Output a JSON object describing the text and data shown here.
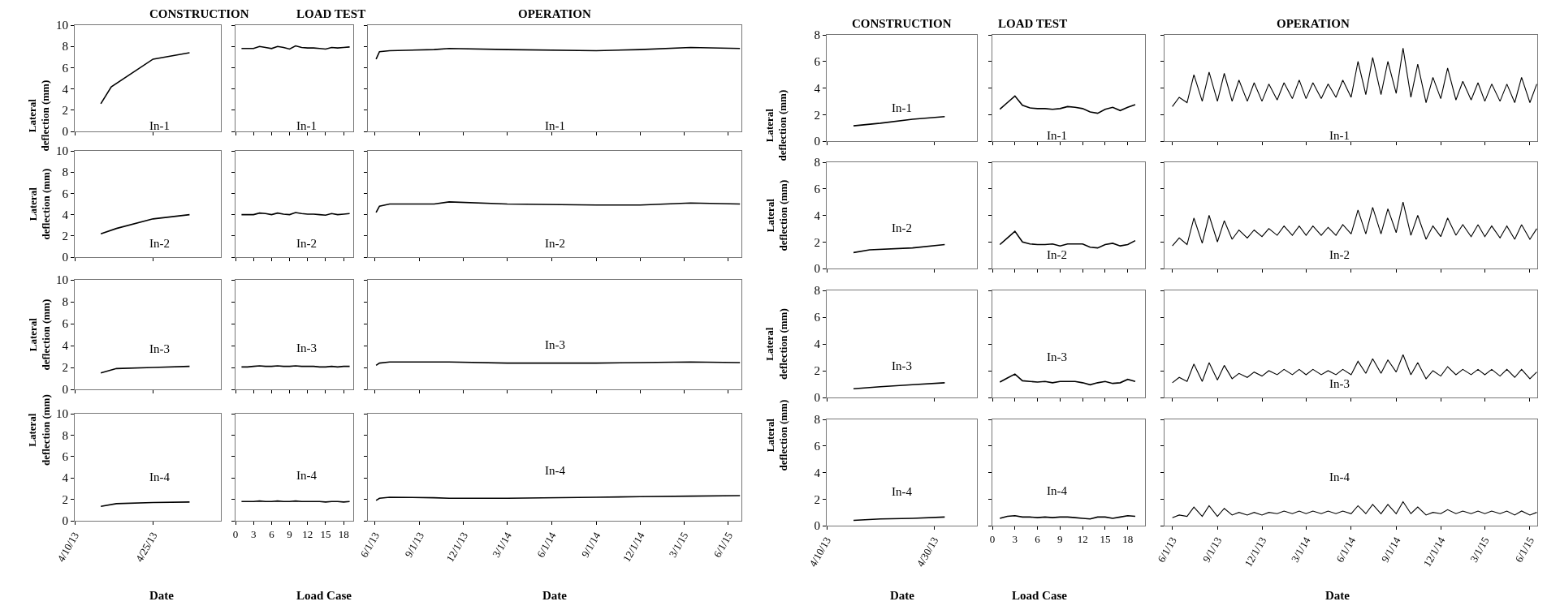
{
  "chart_data": [
    {
      "type": "line",
      "title": "CONSTRUCTION",
      "ylabel": "Lateral\ndeflection (mm)",
      "x": [
        "--04-15",
        "--04-17",
        "--04-25",
        "--05-02"
      ],
      "series": [
        {
          "name": "In-1",
          "color": "#000000",
          "values": [
            2.6,
            4.2,
            6.8,
            7.4
          ]
        }
      ],
      "xlim": [
        "--04-10",
        "--05-08"
      ],
      "xticks": [
        {
          "value": "--04-10",
          "label": "4/10/13"
        },
        {
          "value": "--04-25",
          "label": "4/25/13"
        }
      ],
      "ylim": [
        0,
        10
      ],
      "yticks": [
        0,
        2,
        4,
        6,
        8,
        10
      ],
      "tick_labels": "y"
    },
    {
      "type": "line",
      "title": "LOAD TEST",
      "x": [
        1,
        2,
        3,
        4,
        5,
        6,
        7,
        8,
        9,
        10,
        11,
        12,
        13,
        14,
        15,
        16,
        17,
        18,
        19
      ],
      "series": [
        {
          "name": "In-1",
          "color": "#000000",
          "values": [
            7.8,
            7.8,
            7.8,
            8.0,
            7.9,
            7.8,
            8.0,
            7.9,
            7.75,
            8.05,
            7.9,
            7.85,
            7.85,
            7.8,
            7.75,
            7.9,
            7.85,
            7.9,
            7.95
          ]
        }
      ],
      "xlim": [
        0,
        19.6
      ],
      "xticks": [
        0,
        3,
        6,
        9,
        12,
        15,
        18
      ],
      "ylim": [
        0,
        10
      ],
      "yticks": [
        0,
        2,
        4,
        6,
        8,
        10
      ],
      "tick_labels": false
    },
    {
      "type": "line",
      "title": "OPERATION",
      "x": [
        "2013-06-03",
        "2013-06-10",
        "2013-07-01",
        "2013-10-01",
        "2013-11-01",
        "2014-03-01",
        "2014-09-01",
        "2014-12-01",
        "2015-03-15",
        "2015-06-25"
      ],
      "series": [
        {
          "name": "In-1",
          "color": "#000000",
          "values": [
            6.8,
            7.5,
            7.6,
            7.7,
            7.8,
            7.7,
            7.6,
            7.7,
            7.9,
            7.8
          ]
        }
      ],
      "xlim": [
        "2013-05-17",
        "2015-06-28"
      ],
      "xticks": [
        {
          "value": "2013-06-01",
          "label": "6/1/13"
        },
        {
          "value": "2013-09-01",
          "label": "9/1/13"
        },
        {
          "value": "2013-12-01",
          "label": "12/1/13"
        },
        {
          "value": "2014-03-01",
          "label": "3/1/14"
        },
        {
          "value": "2014-06-01",
          "label": "6/1/14"
        },
        {
          "value": "2014-09-01",
          "label": "9/1/14"
        },
        {
          "value": "2014-12-01",
          "label": "12/1/14"
        },
        {
          "value": "2015-03-01",
          "label": "3/1/15"
        },
        {
          "value": "2015-06-01",
          "label": "6/1/15"
        }
      ],
      "ylim": [
        0,
        10
      ],
      "yticks": [
        0,
        2,
        4,
        6,
        8,
        10
      ],
      "tick_labels": false
    },
    {
      "type": "line",
      "ylabel": "Lateral\ndeflection (mm)",
      "x": [
        "--04-15",
        "--04-18",
        "--04-25",
        "--05-02"
      ],
      "series": [
        {
          "name": "In-2",
          "color": "#000000",
          "values": [
            2.2,
            2.7,
            3.6,
            4.0
          ]
        }
      ],
      "xlim": [
        "--04-10",
        "--05-08"
      ],
      "xticks": [
        {
          "value": "--04-10",
          "label": "4/10/13"
        },
        {
          "value": "--04-25",
          "label": "4/25/13"
        }
      ],
      "ylim": [
        0,
        10
      ],
      "yticks": [
        0,
        2,
        4,
        6,
        8,
        10
      ],
      "tick_labels": "y"
    },
    {
      "type": "line",
      "x": [
        1,
        2,
        3,
        4,
        5,
        6,
        7,
        8,
        9,
        10,
        11,
        12,
        13,
        14,
        15,
        16,
        17,
        18,
        19
      ],
      "series": [
        {
          "name": "In-2",
          "color": "#000000",
          "values": [
            4.0,
            4.0,
            4.0,
            4.15,
            4.1,
            4.0,
            4.15,
            4.05,
            4.0,
            4.2,
            4.1,
            4.05,
            4.05,
            4.0,
            3.95,
            4.1,
            4.0,
            4.05,
            4.1
          ]
        }
      ],
      "xlim": [
        0,
        19.6
      ],
      "xticks": [
        0,
        3,
        6,
        9,
        12,
        15,
        18
      ],
      "ylim": [
        0,
        10
      ],
      "yticks": [
        0,
        2,
        4,
        6,
        8,
        10
      ],
      "tick_labels": false
    },
    {
      "type": "line",
      "x": [
        "2013-06-03",
        "2013-06-10",
        "2013-07-01",
        "2013-10-01",
        "2013-11-01",
        "2014-03-01",
        "2014-09-01",
        "2014-12-01",
        "2015-03-15",
        "2015-06-25"
      ],
      "series": [
        {
          "name": "In-2",
          "color": "#000000",
          "values": [
            4.2,
            4.8,
            5.0,
            5.0,
            5.2,
            5.0,
            4.9,
            4.9,
            5.1,
            5.0
          ]
        }
      ],
      "xlim": [
        "2013-05-17",
        "2015-06-28"
      ],
      "xticks": [
        {
          "value": "2013-06-01",
          "label": "6/1/13"
        },
        {
          "value": "2013-09-01",
          "label": "9/1/13"
        },
        {
          "value": "2013-12-01",
          "label": "12/1/13"
        },
        {
          "value": "2014-03-01",
          "label": "3/1/14"
        },
        {
          "value": "2014-06-01",
          "label": "6/1/14"
        },
        {
          "value": "2014-09-01",
          "label": "9/1/14"
        },
        {
          "value": "2014-12-01",
          "label": "12/1/14"
        },
        {
          "value": "2015-03-01",
          "label": "3/1/15"
        },
        {
          "value": "2015-06-01",
          "label": "6/1/15"
        }
      ],
      "ylim": [
        0,
        10
      ],
      "yticks": [
        0,
        2,
        4,
        6,
        8,
        10
      ],
      "tick_labels": false
    },
    {
      "type": "line",
      "ylabel": "Lateral\ndeflection (mm)",
      "x": [
        "--04-15",
        "--04-18",
        "--04-25",
        "--05-02"
      ],
      "series": [
        {
          "name": "In-3",
          "color": "#000000",
          "values": [
            1.5,
            1.9,
            2.0,
            2.1
          ]
        }
      ],
      "xlim": [
        "--04-10",
        "--05-08"
      ],
      "xticks": [
        {
          "value": "--04-10",
          "label": "4/10/13"
        },
        {
          "value": "--04-25",
          "label": "4/25/13"
        }
      ],
      "ylim": [
        0,
        10
      ],
      "yticks": [
        0,
        2,
        4,
        6,
        8,
        10
      ],
      "tick_labels": "y"
    },
    {
      "type": "line",
      "x": [
        1,
        2,
        3,
        4,
        5,
        6,
        7,
        8,
        9,
        10,
        11,
        12,
        13,
        14,
        15,
        16,
        17,
        18,
        19
      ],
      "series": [
        {
          "name": "In-3",
          "color": "#000000",
          "values": [
            2.05,
            2.05,
            2.1,
            2.15,
            2.1,
            2.1,
            2.15,
            2.1,
            2.1,
            2.15,
            2.1,
            2.1,
            2.1,
            2.05,
            2.05,
            2.1,
            2.05,
            2.1,
            2.1
          ]
        }
      ],
      "xlim": [
        0,
        19.6
      ],
      "xticks": [
        0,
        3,
        6,
        9,
        12,
        15,
        18
      ],
      "ylim": [
        0,
        10
      ],
      "yticks": [
        0,
        2,
        4,
        6,
        8,
        10
      ],
      "tick_labels": false
    },
    {
      "type": "line",
      "x": [
        "2013-06-03",
        "2013-06-10",
        "2013-07-01",
        "2013-10-01",
        "2013-11-01",
        "2014-03-01",
        "2014-09-01",
        "2014-12-01",
        "2015-03-15",
        "2015-06-25"
      ],
      "series": [
        {
          "name": "In-3",
          "color": "#000000",
          "values": [
            2.2,
            2.4,
            2.5,
            2.5,
            2.5,
            2.4,
            2.4,
            2.45,
            2.5,
            2.45
          ]
        }
      ],
      "xlim": [
        "2013-05-17",
        "2015-06-28"
      ],
      "xticks": [
        {
          "value": "2013-06-01",
          "label": "6/1/13"
        },
        {
          "value": "2013-09-01",
          "label": "9/1/13"
        },
        {
          "value": "2013-12-01",
          "label": "12/1/13"
        },
        {
          "value": "2014-03-01",
          "label": "3/1/14"
        },
        {
          "value": "2014-06-01",
          "label": "6/1/14"
        },
        {
          "value": "2014-09-01",
          "label": "9/1/14"
        },
        {
          "value": "2014-12-01",
          "label": "12/1/14"
        },
        {
          "value": "2015-03-01",
          "label": "3/1/15"
        },
        {
          "value": "2015-06-01",
          "label": "6/1/15"
        }
      ],
      "ylim": [
        0,
        10
      ],
      "yticks": [
        0,
        2,
        4,
        6,
        8,
        10
      ],
      "tick_labels": false
    },
    {
      "type": "line",
      "ylabel": "Lateral\ndeflection (mm)",
      "xlabel": "Date",
      "x": [
        "--04-15",
        "--04-18",
        "--04-25",
        "--05-02"
      ],
      "series": [
        {
          "name": "In-4",
          "color": "#000000",
          "values": [
            1.35,
            1.6,
            1.7,
            1.75
          ]
        }
      ],
      "xlim": [
        "--04-10",
        "--05-08"
      ],
      "xticks": [
        {
          "value": "--04-10",
          "label": "4/10/13"
        },
        {
          "value": "--04-25",
          "label": "4/25/13"
        }
      ],
      "ylim": [
        0,
        10
      ],
      "yticks": [
        0,
        2,
        4,
        6,
        8,
        10
      ]
    },
    {
      "type": "line",
      "xlabel": "Load Case",
      "x": [
        1,
        2,
        3,
        4,
        5,
        6,
        7,
        8,
        9,
        10,
        11,
        12,
        13,
        14,
        15,
        16,
        17,
        18,
        19
      ],
      "series": [
        {
          "name": "In-4",
          "color": "#000000",
          "values": [
            1.8,
            1.8,
            1.8,
            1.85,
            1.8,
            1.8,
            1.85,
            1.8,
            1.8,
            1.85,
            1.8,
            1.8,
            1.8,
            1.8,
            1.75,
            1.8,
            1.8,
            1.75,
            1.8
          ]
        }
      ],
      "xlim": [
        0,
        19.6
      ],
      "xticks": [
        0,
        3,
        6,
        9,
        12,
        15,
        18
      ],
      "ylim": [
        0,
        10
      ],
      "yticks": [
        0,
        2,
        4,
        6,
        8,
        10
      ],
      "tick_labels": "x"
    },
    {
      "type": "line",
      "xlabel": "Date",
      "x": [
        "2013-06-03",
        "2013-06-10",
        "2013-07-01",
        "2013-10-01",
        "2013-11-01",
        "2014-03-01",
        "2014-09-01",
        "2014-12-01",
        "2015-03-15",
        "2015-06-25"
      ],
      "series": [
        {
          "name": "In-4",
          "color": "#000000",
          "values": [
            1.9,
            2.1,
            2.2,
            2.15,
            2.1,
            2.1,
            2.2,
            2.25,
            2.3,
            2.35
          ]
        }
      ],
      "xlim": [
        "2013-05-17",
        "2015-06-28"
      ],
      "xticks": [
        {
          "value": "2013-06-01",
          "label": "6/1/13"
        },
        {
          "value": "2013-09-01",
          "label": "9/1/13"
        },
        {
          "value": "2013-12-01",
          "label": "12/1/13"
        },
        {
          "value": "2014-03-01",
          "label": "3/1/14"
        },
        {
          "value": "2014-06-01",
          "label": "6/1/14"
        },
        {
          "value": "2014-09-01",
          "label": "9/1/14"
        },
        {
          "value": "2014-12-01",
          "label": "12/1/14"
        },
        {
          "value": "2015-03-01",
          "label": "3/1/15"
        },
        {
          "value": "2015-06-01",
          "label": "6/1/15"
        }
      ],
      "ylim": [
        0,
        10
      ],
      "yticks": [
        0,
        2,
        4,
        6,
        8,
        10
      ],
      "tick_labels": "x"
    },
    {
      "type": "line",
      "title": "CONSTRUCTION",
      "ylabel": "Lateral\ndeflection (mm)",
      "x": [
        "--04-15",
        "--04-20",
        "--04-26",
        "--05-02"
      ],
      "series": [
        {
          "name": "In-1",
          "color": "#000000",
          "values": [
            1.15,
            1.35,
            1.65,
            1.85
          ]
        }
      ],
      "xlim": [
        "--04-10",
        "--05-08"
      ],
      "xticks": [
        {
          "value": "--04-10",
          "label": "4/10/13"
        },
        {
          "value": "--04-30",
          "label": "4/30/13"
        }
      ],
      "ylim": [
        0,
        8
      ],
      "yticks": [
        0,
        2,
        4,
        6,
        8
      ],
      "tick_labels": "y"
    },
    {
      "type": "line",
      "title": "LOAD TEST",
      "x": [
        1,
        2,
        3,
        4,
        5,
        6,
        7,
        8,
        9,
        10,
        11,
        12,
        13,
        14,
        15,
        16,
        17,
        18,
        19
      ],
      "series": [
        {
          "name": "In-1",
          "color": "#000000",
          "values": [
            2.4,
            2.9,
            3.4,
            2.7,
            2.5,
            2.45,
            2.45,
            2.4,
            2.45,
            2.6,
            2.55,
            2.45,
            2.2,
            2.1,
            2.4,
            2.55,
            2.3,
            2.55,
            2.75
          ]
        }
      ],
      "xlim": [
        0,
        20.3
      ],
      "xticks": [
        0,
        3,
        6,
        9,
        12,
        15,
        18
      ],
      "ylim": [
        0,
        8
      ],
      "yticks": [
        0,
        2,
        4,
        6,
        8
      ],
      "tick_labels": false
    },
    {
      "type": "line",
      "title": "OPERATION",
      "x": [
        "2013-06-01",
        "2013-06-15",
        "2013-07-01",
        "2013-07-15",
        "2013-08-01",
        "2013-08-15",
        "2013-09-01",
        "2013-09-15",
        "2013-10-01",
        "2013-10-15",
        "2013-11-01",
        "2013-11-15",
        "2013-12-01",
        "2013-12-15",
        "2014-01-01",
        "2014-01-15",
        "2014-02-01",
        "2014-02-15",
        "2014-03-01",
        "2014-03-15",
        "2014-04-01",
        "2014-04-15",
        "2014-05-01",
        "2014-05-15",
        "2014-06-01",
        "2014-06-15",
        "2014-07-01",
        "2014-07-15",
        "2014-08-01",
        "2014-08-15",
        "2014-09-01",
        "2014-09-15",
        "2014-10-01",
        "2014-10-15",
        "2014-11-01",
        "2014-11-15",
        "2014-12-01",
        "2014-12-15",
        "2015-01-01",
        "2015-01-15",
        "2015-02-01",
        "2015-02-15",
        "2015-03-01",
        "2015-03-15",
        "2015-04-01",
        "2015-04-15",
        "2015-05-01",
        "2015-05-15",
        "2015-06-01",
        "2015-06-15"
      ],
      "series": [
        {
          "name": "In-1",
          "color": "#000000",
          "values": [
            2.6,
            3.3,
            2.9,
            5.0,
            3.0,
            5.2,
            3.0,
            5.1,
            3.0,
            4.6,
            3.0,
            4.4,
            3.0,
            4.3,
            3.1,
            4.4,
            3.2,
            4.6,
            3.2,
            4.4,
            3.2,
            4.3,
            3.3,
            4.6,
            3.3,
            6.0,
            3.5,
            6.3,
            3.5,
            6.0,
            3.6,
            7.0,
            3.3,
            5.8,
            2.9,
            4.8,
            3.2,
            5.5,
            3.1,
            4.5,
            3.1,
            4.4,
            3.0,
            4.3,
            3.0,
            4.3,
            2.9,
            4.8,
            2.9,
            4.3
          ]
        }
      ],
      "xlim": [
        "2013-05-16",
        "2015-06-16"
      ],
      "xticks": [
        {
          "value": "2013-06-01",
          "label": "6/1/13"
        },
        {
          "value": "2013-09-01",
          "label": "9/1/13"
        },
        {
          "value": "2013-12-01",
          "label": "12/1/13"
        },
        {
          "value": "2014-03-01",
          "label": "3/1/14"
        },
        {
          "value": "2014-06-01",
          "label": "6/1/14"
        },
        {
          "value": "2014-09-01",
          "label": "9/1/14"
        },
        {
          "value": "2014-12-01",
          "label": "12/1/14"
        },
        {
          "value": "2015-03-01",
          "label": "3/1/15"
        },
        {
          "value": "2015-06-01",
          "label": "6/1/15"
        }
      ],
      "ylim": [
        0,
        8
      ],
      "yticks": [
        0,
        2,
        4,
        6,
        8
      ],
      "tick_labels": false
    },
    {
      "type": "line",
      "ylabel": "Lateral\ndeflection (mm)",
      "x": [
        "--04-15",
        "--04-18",
        "--04-26",
        "--05-02"
      ],
      "series": [
        {
          "name": "In-2",
          "color": "#000000",
          "values": [
            1.2,
            1.4,
            1.55,
            1.8
          ]
        }
      ],
      "xlim": [
        "--04-10",
        "--05-08"
      ],
      "xticks": [
        {
          "value": "--04-10",
          "label": "4/10/13"
        },
        {
          "value": "--04-30",
          "label": "4/30/13"
        }
      ],
      "ylim": [
        0,
        8
      ],
      "yticks": [
        0,
        2,
        4,
        6,
        8
      ],
      "tick_labels": "y"
    },
    {
      "type": "line",
      "x": [
        1,
        2,
        3,
        4,
        5,
        6,
        7,
        8,
        9,
        10,
        11,
        12,
        13,
        14,
        15,
        16,
        17,
        18,
        19
      ],
      "series": [
        {
          "name": "In-2",
          "color": "#000000",
          "values": [
            1.8,
            2.3,
            2.8,
            2.0,
            1.85,
            1.8,
            1.8,
            1.85,
            1.7,
            1.85,
            1.85,
            1.85,
            1.6,
            1.55,
            1.8,
            1.9,
            1.7,
            1.8,
            2.1
          ]
        }
      ],
      "xlim": [
        0,
        20.3
      ],
      "xticks": [
        0,
        3,
        6,
        9,
        12,
        15,
        18
      ],
      "ylim": [
        0,
        8
      ],
      "yticks": [
        0,
        2,
        4,
        6,
        8
      ],
      "tick_labels": false
    },
    {
      "type": "line",
      "x": [
        "2013-06-01",
        "2013-06-15",
        "2013-07-01",
        "2013-07-15",
        "2013-08-01",
        "2013-08-15",
        "2013-09-01",
        "2013-09-15",
        "2013-10-01",
        "2013-10-15",
        "2013-11-01",
        "2013-11-15",
        "2013-12-01",
        "2013-12-15",
        "2014-01-01",
        "2014-01-15",
        "2014-02-01",
        "2014-02-15",
        "2014-03-01",
        "2014-03-15",
        "2014-04-01",
        "2014-04-15",
        "2014-05-01",
        "2014-05-15",
        "2014-06-01",
        "2014-06-15",
        "2014-07-01",
        "2014-07-15",
        "2014-08-01",
        "2014-08-15",
        "2014-09-01",
        "2014-09-15",
        "2014-10-01",
        "2014-10-15",
        "2014-11-01",
        "2014-11-15",
        "2014-12-01",
        "2014-12-15",
        "2015-01-01",
        "2015-01-15",
        "2015-02-01",
        "2015-02-15",
        "2015-03-01",
        "2015-03-15",
        "2015-04-01",
        "2015-04-15",
        "2015-05-01",
        "2015-05-15",
        "2015-06-01",
        "2015-06-15"
      ],
      "series": [
        {
          "name": "In-2",
          "color": "#000000",
          "values": [
            1.7,
            2.3,
            1.8,
            3.8,
            1.9,
            4.0,
            2.0,
            3.6,
            2.2,
            2.9,
            2.3,
            2.9,
            2.4,
            3.0,
            2.5,
            3.2,
            2.5,
            3.2,
            2.5,
            3.2,
            2.5,
            3.1,
            2.5,
            3.3,
            2.6,
            4.4,
            2.6,
            4.6,
            2.6,
            4.5,
            2.7,
            5.0,
            2.5,
            4.0,
            2.2,
            3.2,
            2.4,
            3.8,
            2.5,
            3.3,
            2.4,
            3.3,
            2.4,
            3.2,
            2.3,
            3.2,
            2.2,
            3.3,
            2.2,
            3.0
          ]
        }
      ],
      "xlim": [
        "2013-05-16",
        "2015-06-16"
      ],
      "xticks": [
        {
          "value": "2013-06-01",
          "label": "6/1/13"
        },
        {
          "value": "2013-09-01",
          "label": "9/1/13"
        },
        {
          "value": "2013-12-01",
          "label": "12/1/13"
        },
        {
          "value": "2014-03-01",
          "label": "3/1/14"
        },
        {
          "value": "2014-06-01",
          "label": "6/1/14"
        },
        {
          "value": "2014-09-01",
          "label": "9/1/14"
        },
        {
          "value": "2014-12-01",
          "label": "12/1/14"
        },
        {
          "value": "2015-03-01",
          "label": "3/1/15"
        },
        {
          "value": "2015-06-01",
          "label": "6/1/15"
        }
      ],
      "ylim": [
        0,
        8
      ],
      "yticks": [
        0,
        2,
        4,
        6,
        8
      ],
      "tick_labels": false
    },
    {
      "type": "line",
      "ylabel": "Lateral\ndeflection (mm)",
      "x": [
        "--04-15",
        "--04-20",
        "--04-26",
        "--05-02"
      ],
      "series": [
        {
          "name": "In-3",
          "color": "#000000",
          "values": [
            0.65,
            0.8,
            0.95,
            1.1
          ]
        }
      ],
      "xlim": [
        "--04-10",
        "--05-08"
      ],
      "xticks": [
        {
          "value": "--04-10",
          "label": "4/10/13"
        },
        {
          "value": "--04-30",
          "label": "4/30/13"
        }
      ],
      "ylim": [
        0,
        8
      ],
      "yticks": [
        0,
        2,
        4,
        6,
        8
      ],
      "tick_labels": "y"
    },
    {
      "type": "line",
      "x": [
        1,
        2,
        3,
        4,
        5,
        6,
        7,
        8,
        9,
        10,
        11,
        12,
        13,
        14,
        15,
        16,
        17,
        18,
        19
      ],
      "series": [
        {
          "name": "In-3",
          "color": "#000000",
          "values": [
            1.15,
            1.45,
            1.75,
            1.25,
            1.2,
            1.15,
            1.2,
            1.1,
            1.2,
            1.2,
            1.2,
            1.1,
            0.95,
            1.1,
            1.2,
            1.05,
            1.1,
            1.35,
            1.2
          ]
        }
      ],
      "xlim": [
        0,
        20.3
      ],
      "xticks": [
        0,
        3,
        6,
        9,
        12,
        15,
        18
      ],
      "ylim": [
        0,
        8
      ],
      "yticks": [
        0,
        2,
        4,
        6,
        8
      ],
      "tick_labels": false
    },
    {
      "type": "line",
      "x": [
        "2013-06-01",
        "2013-06-15",
        "2013-07-01",
        "2013-07-15",
        "2013-08-01",
        "2013-08-15",
        "2013-09-01",
        "2013-09-15",
        "2013-10-01",
        "2013-10-15",
        "2013-11-01",
        "2013-11-15",
        "2013-12-01",
        "2013-12-15",
        "2014-01-01",
        "2014-01-15",
        "2014-02-01",
        "2014-02-15",
        "2014-03-01",
        "2014-03-15",
        "2014-04-01",
        "2014-04-15",
        "2014-05-01",
        "2014-05-15",
        "2014-06-01",
        "2014-06-15",
        "2014-07-01",
        "2014-07-15",
        "2014-08-01",
        "2014-08-15",
        "2014-09-01",
        "2014-09-15",
        "2014-10-01",
        "2014-10-15",
        "2014-11-01",
        "2014-11-15",
        "2014-12-01",
        "2014-12-15",
        "2015-01-01",
        "2015-01-15",
        "2015-02-01",
        "2015-02-15",
        "2015-03-01",
        "2015-03-15",
        "2015-04-01",
        "2015-04-15",
        "2015-05-01",
        "2015-05-15",
        "2015-06-01",
        "2015-06-15"
      ],
      "series": [
        {
          "name": "In-3",
          "color": "#000000",
          "values": [
            1.1,
            1.5,
            1.2,
            2.5,
            1.2,
            2.6,
            1.3,
            2.4,
            1.4,
            1.8,
            1.5,
            1.9,
            1.6,
            2.0,
            1.7,
            2.1,
            1.7,
            2.1,
            1.7,
            2.1,
            1.7,
            2.0,
            1.7,
            2.1,
            1.7,
            2.7,
            1.8,
            2.9,
            1.8,
            2.8,
            1.9,
            3.2,
            1.7,
            2.6,
            1.4,
            2.0,
            1.6,
            2.3,
            1.7,
            2.1,
            1.7,
            2.1,
            1.7,
            2.1,
            1.6,
            2.1,
            1.5,
            2.1,
            1.4,
            1.9
          ]
        }
      ],
      "xlim": [
        "2013-05-16",
        "2015-06-16"
      ],
      "xticks": [
        {
          "value": "2013-06-01",
          "label": "6/1/13"
        },
        {
          "value": "2013-09-01",
          "label": "9/1/13"
        },
        {
          "value": "2013-12-01",
          "label": "12/1/13"
        },
        {
          "value": "2014-03-01",
          "label": "3/1/14"
        },
        {
          "value": "2014-06-01",
          "label": "6/1/14"
        },
        {
          "value": "2014-09-01",
          "label": "9/1/14"
        },
        {
          "value": "2014-12-01",
          "label": "12/1/14"
        },
        {
          "value": "2015-03-01",
          "label": "3/1/15"
        },
        {
          "value": "2015-06-01",
          "label": "6/1/15"
        }
      ],
      "ylim": [
        0,
        8
      ],
      "yticks": [
        0,
        2,
        4,
        6,
        8
      ],
      "tick_labels": false
    },
    {
      "type": "line",
      "ylabel": "Lateral\ndeflection (mm)",
      "xlabel": "Date",
      "x": [
        "--04-15",
        "--04-20",
        "--04-26",
        "--05-02"
      ],
      "series": [
        {
          "name": "In-4",
          "color": "#000000",
          "values": [
            0.4,
            0.5,
            0.55,
            0.65
          ]
        }
      ],
      "xlim": [
        "--04-10",
        "--05-08"
      ],
      "xticks": [
        {
          "value": "--04-10",
          "label": "4/10/13"
        },
        {
          "value": "--04-30",
          "label": "4/30/13"
        }
      ],
      "ylim": [
        0,
        8
      ],
      "yticks": [
        0,
        2,
        4,
        6,
        8
      ]
    },
    {
      "type": "line",
      "xlabel": "Load Case",
      "x": [
        1,
        2,
        3,
        4,
        5,
        6,
        7,
        8,
        9,
        10,
        11,
        12,
        13,
        14,
        15,
        16,
        17,
        18,
        19
      ],
      "series": [
        {
          "name": "In-4",
          "color": "#000000",
          "values": [
            0.55,
            0.7,
            0.75,
            0.65,
            0.65,
            0.6,
            0.65,
            0.6,
            0.65,
            0.65,
            0.6,
            0.55,
            0.5,
            0.65,
            0.65,
            0.55,
            0.65,
            0.75,
            0.7
          ]
        }
      ],
      "xlim": [
        0,
        20.3
      ],
      "xticks": [
        0,
        3,
        6,
        9,
        12,
        15,
        18
      ],
      "ylim": [
        0,
        8
      ],
      "yticks": [
        0,
        2,
        4,
        6,
        8
      ],
      "tick_labels": "x"
    },
    {
      "type": "line",
      "xlabel": "Date",
      "x": [
        "2013-06-01",
        "2013-06-15",
        "2013-07-01",
        "2013-07-15",
        "2013-08-01",
        "2013-08-15",
        "2013-09-01",
        "2013-09-15",
        "2013-10-01",
        "2013-10-15",
        "2013-11-01",
        "2013-11-15",
        "2013-12-01",
        "2013-12-15",
        "2014-01-01",
        "2014-01-15",
        "2014-02-01",
        "2014-02-15",
        "2014-03-01",
        "2014-03-15",
        "2014-04-01",
        "2014-04-15",
        "2014-05-01",
        "2014-05-15",
        "2014-06-01",
        "2014-06-15",
        "2014-07-01",
        "2014-07-15",
        "2014-08-01",
        "2014-08-15",
        "2014-09-01",
        "2014-09-15",
        "2014-10-01",
        "2014-10-15",
        "2014-11-01",
        "2014-11-15",
        "2014-12-01",
        "2014-12-15",
        "2015-01-01",
        "2015-01-15",
        "2015-02-01",
        "2015-02-15",
        "2015-03-01",
        "2015-03-15",
        "2015-04-01",
        "2015-04-15",
        "2015-05-01",
        "2015-05-15",
        "2015-06-01",
        "2015-06-15"
      ],
      "series": [
        {
          "name": "In-4",
          "color": "#000000",
          "values": [
            0.6,
            0.8,
            0.7,
            1.4,
            0.7,
            1.5,
            0.7,
            1.3,
            0.8,
            1.0,
            0.8,
            1.0,
            0.8,
            1.0,
            0.9,
            1.1,
            0.9,
            1.1,
            0.9,
            1.1,
            0.9,
            1.1,
            0.9,
            1.1,
            0.9,
            1.5,
            0.9,
            1.6,
            0.9,
            1.6,
            0.9,
            1.8,
            0.9,
            1.4,
            0.8,
            1.0,
            0.9,
            1.2,
            0.9,
            1.1,
            0.9,
            1.1,
            0.9,
            1.1,
            0.9,
            1.1,
            0.8,
            1.1,
            0.8,
            1.0
          ]
        }
      ],
      "xlim": [
        "2013-05-16",
        "2015-06-16"
      ],
      "xticks": [
        {
          "value": "2013-06-01",
          "label": "6/1/13"
        },
        {
          "value": "2013-09-01",
          "label": "9/1/13"
        },
        {
          "value": "2013-12-01",
          "label": "12/1/13"
        },
        {
          "value": "2014-03-01",
          "label": "3/1/14"
        },
        {
          "value": "2014-06-01",
          "label": "6/1/14"
        },
        {
          "value": "2014-09-01",
          "label": "9/1/14"
        },
        {
          "value": "2014-12-01",
          "label": "12/1/14"
        },
        {
          "value": "2015-03-01",
          "label": "3/1/15"
        },
        {
          "value": "2015-06-01",
          "label": "6/1/15"
        }
      ],
      "ylim": [
        0,
        8
      ],
      "yticks": [
        0,
        2,
        4,
        6,
        8
      ],
      "tick_labels": "x"
    }
  ]
}
